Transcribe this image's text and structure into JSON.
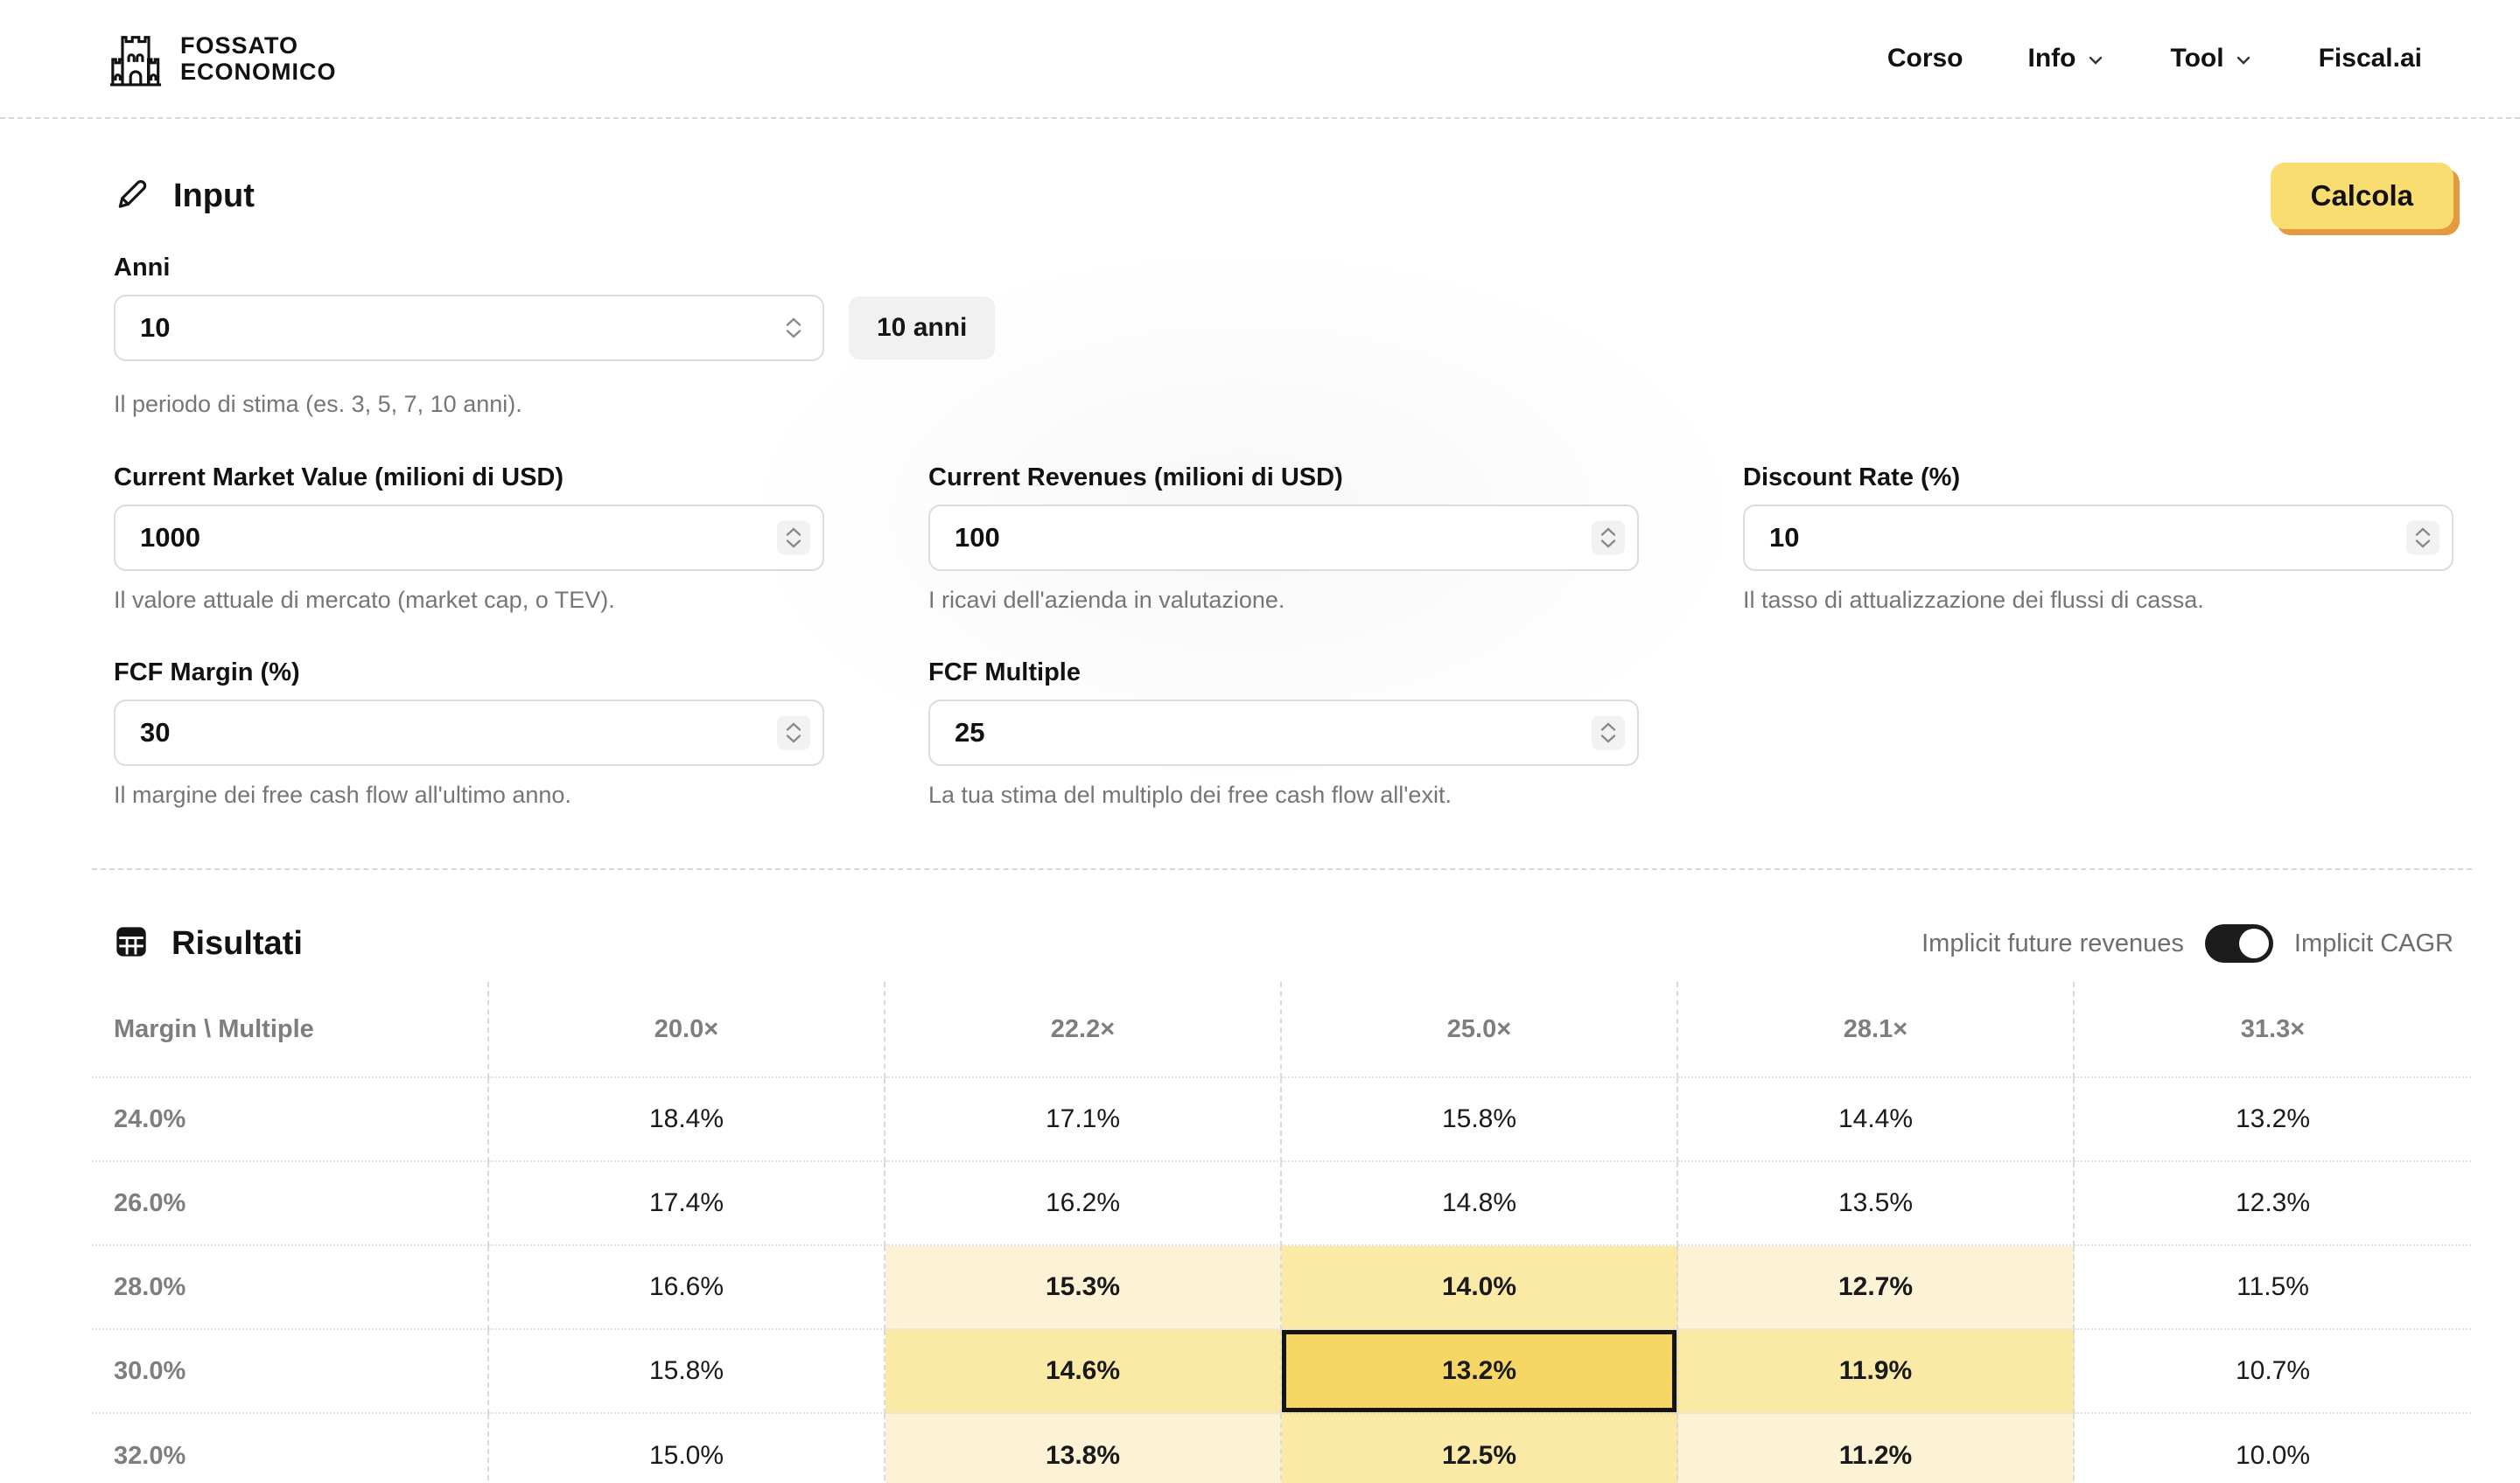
{
  "header": {
    "logo": {
      "line1": "FOSSATO",
      "line2": "ECONOMICO"
    },
    "nav": [
      {
        "label": "Corso",
        "has_dropdown": false
      },
      {
        "label": "Info",
        "has_dropdown": true
      },
      {
        "label": "Tool",
        "has_dropdown": true
      },
      {
        "label": "Fiscal.ai",
        "has_dropdown": false
      }
    ]
  },
  "input_section": {
    "title": "Input",
    "calculate_button": "Calcola",
    "fields": {
      "anni": {
        "label": "Anni",
        "value": "10",
        "badge": "10 anni",
        "hint": "Il periodo di stima (es. 3, 5, 7, 10 anni)."
      },
      "market_value": {
        "label": "Current Market Value (milioni di USD)",
        "value": "1000",
        "hint": "Il valore attuale di mercato (market cap, o TEV)."
      },
      "revenues": {
        "label": "Current Revenues (milioni di USD)",
        "value": "100",
        "hint": "I ricavi dell'azienda in valutazione."
      },
      "discount_rate": {
        "label": "Discount Rate (%)",
        "value": "10",
        "hint": "Il tasso di attualizzazione dei flussi di cassa."
      },
      "fcf_margin": {
        "label": "FCF Margin (%)",
        "value": "30",
        "hint": "Il margine dei free cash flow all'ultimo anno."
      },
      "fcf_multiple": {
        "label": "FCF Multiple",
        "value": "25",
        "hint": "La tua stima del multiplo dei free cash flow all'exit."
      }
    }
  },
  "results": {
    "title": "Risultati",
    "toggle": {
      "label_left": "Implicit future revenues",
      "label_right": "Implicit CAGR",
      "state": "right"
    },
    "table": {
      "corner_label": "Margin \\ Multiple",
      "col_headers": [
        "20.0×",
        "22.2×",
        "25.0×",
        "28.1×",
        "31.3×"
      ],
      "row_headers": [
        "24.0%",
        "26.0%",
        "28.0%",
        "30.0%",
        "32.0%"
      ],
      "rows": [
        [
          "18.4%",
          "17.1%",
          "15.8%",
          "14.4%",
          "13.2%"
        ],
        [
          "17.4%",
          "16.2%",
          "14.8%",
          "13.5%",
          "12.3%"
        ],
        [
          "16.6%",
          "15.3%",
          "14.0%",
          "12.7%",
          "11.5%"
        ],
        [
          "15.8%",
          "14.6%",
          "13.2%",
          "11.9%",
          "10.7%"
        ],
        [
          "15.0%",
          "13.8%",
          "12.5%",
          "11.2%",
          "10.0%"
        ]
      ],
      "selected_cell": {
        "row_index": 3,
        "col_index": 2,
        "value": "13.2%"
      }
    }
  },
  "colors": {
    "accent_button": "#F9DD70",
    "accent_button_shadow": "#E49A41",
    "highlight_center": "#F6D765",
    "highlight_adjacent": "#FAEAA6",
    "highlight_diagonal": "#FCF3D6",
    "selected_cell_border": "#141414"
  }
}
